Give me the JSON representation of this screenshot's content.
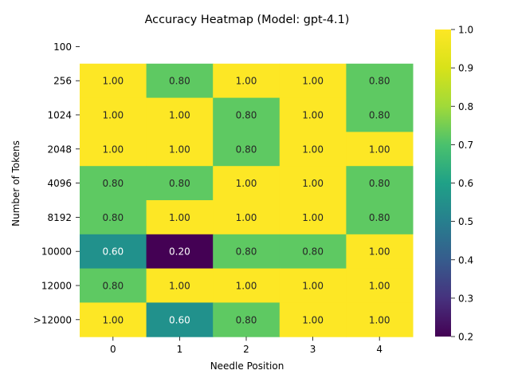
{
  "chart_data": {
    "type": "heatmap",
    "title": "Accuracy Heatmap (Model: gpt-4.1)",
    "xlabel": "Needle Position",
    "ylabel": "Number of Tokens",
    "x_categories": [
      "0",
      "1",
      "2",
      "3",
      "4"
    ],
    "y_categories": [
      "100",
      "256",
      "1024",
      "2048",
      "4096",
      "8192",
      "10000",
      "12000",
      ">12000"
    ],
    "values": [
      [
        null,
        null,
        null,
        null,
        null
      ],
      [
        1.0,
        0.8,
        1.0,
        1.0,
        0.8
      ],
      [
        1.0,
        1.0,
        0.8,
        1.0,
        0.8
      ],
      [
        1.0,
        1.0,
        0.8,
        1.0,
        1.0
      ],
      [
        0.8,
        0.8,
        1.0,
        1.0,
        0.8
      ],
      [
        0.8,
        1.0,
        1.0,
        1.0,
        0.8
      ],
      [
        0.6,
        0.2,
        0.8,
        0.8,
        1.0
      ],
      [
        0.8,
        1.0,
        1.0,
        1.0,
        1.0
      ],
      [
        1.0,
        0.6,
        0.8,
        1.0,
        1.0
      ]
    ],
    "annotation_format": "0.00",
    "colormap": "viridis",
    "vmin": 0.2,
    "vmax": 1.0,
    "colorbar_ticks": [
      "0.2",
      "0.3",
      "0.4",
      "0.5",
      "0.6",
      "0.7",
      "0.8",
      "0.9",
      "1.0"
    ],
    "colorbar_tick_values": [
      0.2,
      0.3,
      0.4,
      0.5,
      0.6,
      0.7,
      0.8,
      0.9,
      1.0
    ],
    "colors": {
      "0.2": "#440154",
      "0.6": "#21918c",
      "0.8": "#5ec962",
      "1.0": "#fde725"
    }
  }
}
